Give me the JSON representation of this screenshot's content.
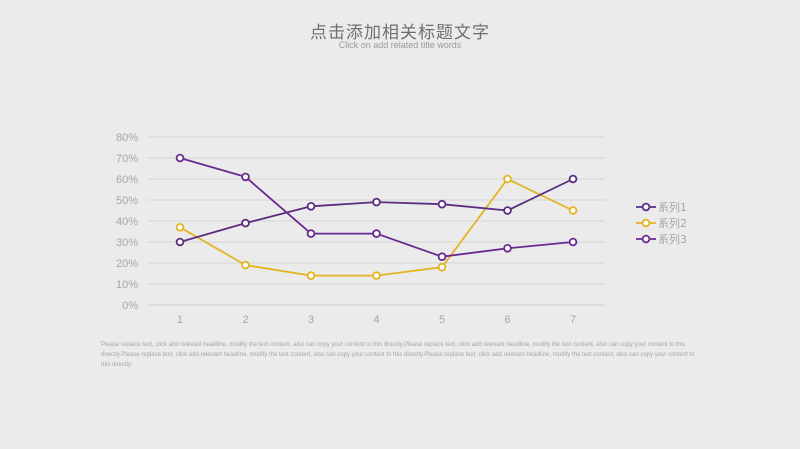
{
  "title": "点击添加相关标题文字",
  "subtitle": "Click on add related title words",
  "caption": "Please replace text, click add relevant headline, modify the text content, also can copy your content to this directly.Please replace text, click add relevant headline, modify the text content, also can copy your content to this directly.Please replace text, click add relevant headline, modify the text content, also can copy your content to this directly.Please replace text, click add relevant headline, modify the text content, also can copy your content to this directly.",
  "chart_data": {
    "type": "line",
    "x": [
      "1",
      "2",
      "3",
      "4",
      "5",
      "6",
      "7"
    ],
    "ylim": [
      0,
      80
    ],
    "yticks": [
      "0%",
      "10%",
      "20%",
      "30%",
      "40%",
      "50%",
      "60%",
      "70%",
      "80%"
    ],
    "grid": true,
    "legend_position": "right",
    "series": [
      {
        "name": "系列1",
        "color": "#5b2d82",
        "values": [
          30,
          39,
          47,
          49,
          48,
          45,
          60
        ]
      },
      {
        "name": "系列2",
        "color": "#e3b320",
        "values": [
          37,
          19,
          14,
          14,
          18,
          60,
          45
        ]
      },
      {
        "name": "系列3",
        "color": "#6a2a90",
        "values": [
          70,
          61,
          34,
          34,
          23,
          27,
          30
        ]
      }
    ]
  }
}
